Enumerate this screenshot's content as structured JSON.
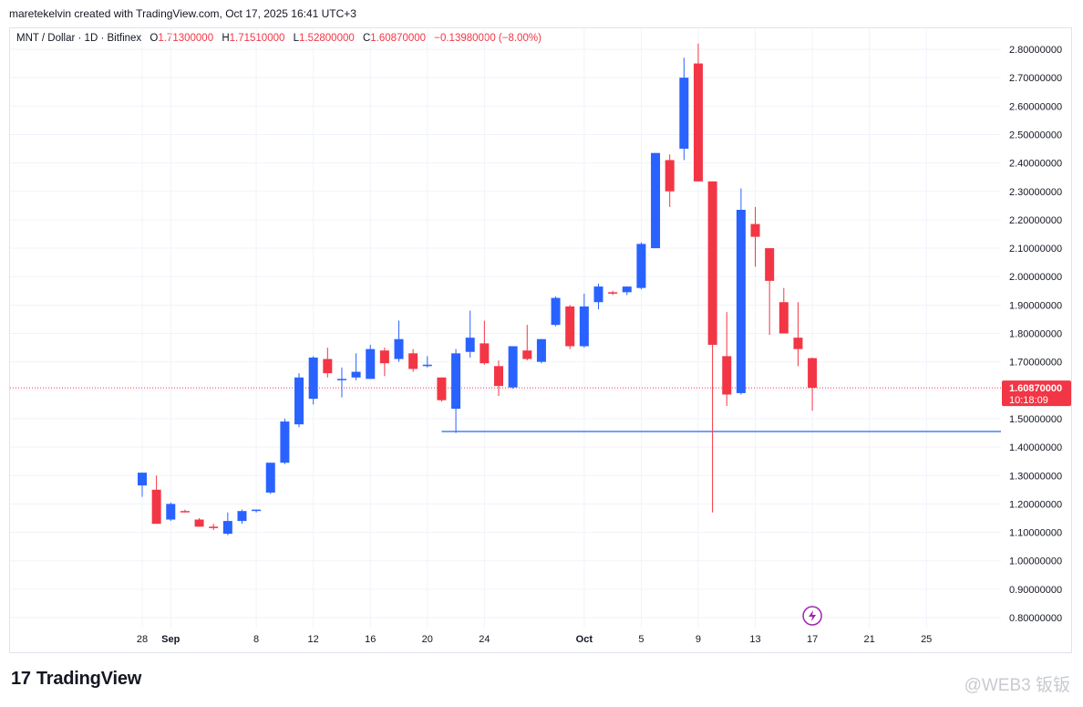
{
  "header": {
    "credit": "maretekelvin created with TradingView.com, Oct 17, 2025 16:41 UTC+3"
  },
  "legend": {
    "symbol": "MNT / Dollar · 1D · Bitfinex",
    "o_label": "O",
    "o": "1.71300000",
    "h_label": "H",
    "h": "1.71510000",
    "l_label": "L",
    "l": "1.52800000",
    "c_label": "C",
    "c": "1.60870000",
    "change": "−0.13980000 (−8.00%)"
  },
  "footer": {
    "brand": "TradingView",
    "watermark": "@WEB3 钣钣"
  },
  "colors": {
    "up": "#2962ff",
    "down": "#f23645",
    "support_line": "#2962ff",
    "price_line": "#f23645"
  },
  "chart_data": {
    "type": "candlestick",
    "ylim": [
      0.75,
      2.85
    ],
    "y_ticks": [
      "0.80000000",
      "0.90000000",
      "1.00000000",
      "1.10000000",
      "1.20000000",
      "1.30000000",
      "1.40000000",
      "1.50000000",
      "1.60000000",
      "1.70000000",
      "1.80000000",
      "1.90000000",
      "2.00000000",
      "2.10000000",
      "2.20000000",
      "2.30000000",
      "2.40000000",
      "2.50000000",
      "2.60000000",
      "2.70000000",
      "2.80000000"
    ],
    "x_ticks": [
      {
        "label": "28",
        "day": 0
      },
      {
        "label": "Sep",
        "day": 2
      },
      {
        "label": "8",
        "day": 8
      },
      {
        "label": "12",
        "day": 12
      },
      {
        "label": "16",
        "day": 16
      },
      {
        "label": "20",
        "day": 20
      },
      {
        "label": "24",
        "day": 24
      },
      {
        "label": "Oct",
        "day": 31
      },
      {
        "label": "5",
        "day": 35
      },
      {
        "label": "9",
        "day": 39
      },
      {
        "label": "13",
        "day": 43
      },
      {
        "label": "17",
        "day": 47
      },
      {
        "label": "21",
        "day": 51
      },
      {
        "label": "25",
        "day": 55
      }
    ],
    "x_range_days": [
      -1,
      58
    ],
    "candles": [
      {
        "o": 1.265,
        "h": 1.31,
        "l": 1.225,
        "c": 1.31
      },
      {
        "o": 1.25,
        "h": 1.3,
        "l": 1.13,
        "c": 1.13
      },
      {
        "o": 1.145,
        "h": 1.205,
        "l": 1.14,
        "c": 1.2
      },
      {
        "o": 1.175,
        "h": 1.18,
        "l": 1.17,
        "c": 1.172
      },
      {
        "o": 1.145,
        "h": 1.15,
        "l": 1.12,
        "c": 1.12
      },
      {
        "o": 1.12,
        "h": 1.13,
        "l": 1.108,
        "c": 1.115
      },
      {
        "o": 1.095,
        "h": 1.17,
        "l": 1.09,
        "c": 1.14
      },
      {
        "o": 1.14,
        "h": 1.18,
        "l": 1.13,
        "c": 1.175
      },
      {
        "o": 1.175,
        "h": 1.18,
        "l": 1.17,
        "c": 1.18
      },
      {
        "o": 1.24,
        "h": 1.345,
        "l": 1.235,
        "c": 1.345
      },
      {
        "o": 1.345,
        "h": 1.5,
        "l": 1.34,
        "c": 1.49
      },
      {
        "o": 1.48,
        "h": 1.66,
        "l": 1.47,
        "c": 1.645
      },
      {
        "o": 1.57,
        "h": 1.72,
        "l": 1.55,
        "c": 1.715
      },
      {
        "o": 1.71,
        "h": 1.75,
        "l": 1.645,
        "c": 1.66
      },
      {
        "o": 1.64,
        "h": 1.68,
        "l": 1.575,
        "c": 1.64
      },
      {
        "o": 1.645,
        "h": 1.73,
        "l": 1.635,
        "c": 1.665
      },
      {
        "o": 1.64,
        "h": 1.76,
        "l": 1.64,
        "c": 1.745
      },
      {
        "o": 1.74,
        "h": 1.75,
        "l": 1.65,
        "c": 1.695
      },
      {
        "o": 1.71,
        "h": 1.845,
        "l": 1.7,
        "c": 1.78
      },
      {
        "o": 1.73,
        "h": 1.745,
        "l": 1.665,
        "c": 1.675
      },
      {
        "o": 1.685,
        "h": 1.72,
        "l": 1.68,
        "c": 1.69
      },
      {
        "o": 1.645,
        "h": 1.645,
        "l": 1.56,
        "c": 1.565
      },
      {
        "o": 1.535,
        "h": 1.745,
        "l": 1.45,
        "c": 1.73
      },
      {
        "o": 1.735,
        "h": 1.88,
        "l": 1.715,
        "c": 1.785
      },
      {
        "o": 1.765,
        "h": 1.845,
        "l": 1.69,
        "c": 1.695
      },
      {
        "o": 1.685,
        "h": 1.705,
        "l": 1.58,
        "c": 1.615
      },
      {
        "o": 1.61,
        "h": 1.755,
        "l": 1.605,
        "c": 1.755
      },
      {
        "o": 1.74,
        "h": 1.83,
        "l": 1.705,
        "c": 1.71
      },
      {
        "o": 1.7,
        "h": 1.78,
        "l": 1.695,
        "c": 1.78
      },
      {
        "o": 1.83,
        "h": 1.93,
        "l": 1.825,
        "c": 1.925
      },
      {
        "o": 1.895,
        "h": 1.9,
        "l": 1.745,
        "c": 1.755
      },
      {
        "o": 1.755,
        "h": 1.94,
        "l": 1.75,
        "c": 1.895
      },
      {
        "o": 1.91,
        "h": 1.975,
        "l": 1.885,
        "c": 1.965
      },
      {
        "o": 1.945,
        "h": 1.95,
        "l": 1.935,
        "c": 1.94
      },
      {
        "o": 1.945,
        "h": 1.965,
        "l": 1.935,
        "c": 1.965
      },
      {
        "o": 1.96,
        "h": 2.12,
        "l": 1.955,
        "c": 2.115
      },
      {
        "o": 2.1,
        "h": 2.435,
        "l": 2.1,
        "c": 2.435
      },
      {
        "o": 2.41,
        "h": 2.43,
        "l": 2.245,
        "c": 2.3
      },
      {
        "o": 2.45,
        "h": 2.77,
        "l": 2.41,
        "c": 2.7
      },
      {
        "o": 2.75,
        "h": 2.82,
        "l": 2.335,
        "c": 2.335
      },
      {
        "o": 2.335,
        "h": 2.335,
        "l": 1.17,
        "c": 1.76
      },
      {
        "o": 1.72,
        "h": 1.875,
        "l": 1.545,
        "c": 1.585
      },
      {
        "o": 1.59,
        "h": 2.31,
        "l": 1.585,
        "c": 2.235
      },
      {
        "o": 2.185,
        "h": 2.245,
        "l": 2.035,
        "c": 2.14
      },
      {
        "o": 2.1,
        "h": 2.1,
        "l": 1.795,
        "c": 1.985
      },
      {
        "o": 1.91,
        "h": 1.96,
        "l": 1.8,
        "c": 1.8
      },
      {
        "o": 1.785,
        "h": 1.91,
        "l": 1.685,
        "c": 1.745
      },
      {
        "o": 1.713,
        "h": 1.7151,
        "l": 1.528,
        "c": 1.6087
      }
    ],
    "support_level": 1.455,
    "support_start_day": 21,
    "last_price": "1.60870000",
    "countdown": "10:18:09"
  }
}
